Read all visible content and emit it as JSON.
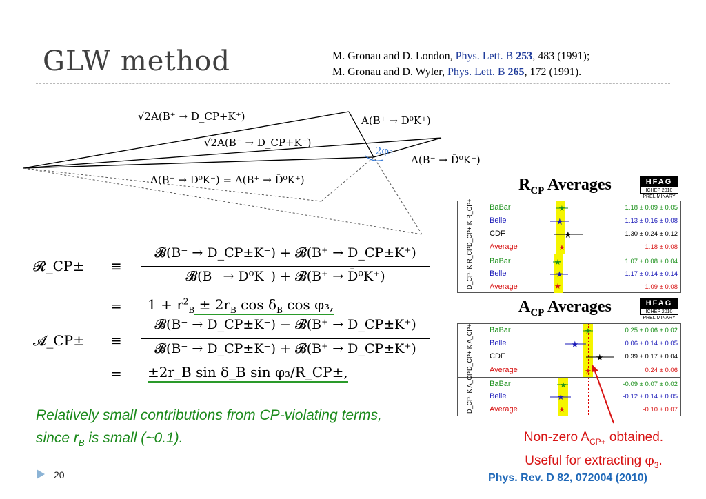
{
  "slide": {
    "title": "GLW method",
    "page_number": "20"
  },
  "references": {
    "line1": {
      "authors": "M. Gronau and D. London, ",
      "journal": "Phys. Lett. B ",
      "volume": "253",
      "rest": ", 483 (1991);"
    },
    "line2": {
      "authors": "M. Gronau and D. Wyler, ",
      "journal": "Phys. Lett. B ",
      "volume": "265",
      "rest": ", 172 (1991)."
    }
  },
  "diagram_labels": {
    "sqrt2_bplus": "√2A(B⁺ → D_CP+K⁺)",
    "sqrt2_bminus": "√2A(B⁻ → D_CP+K⁻)",
    "a_bplus_d0": "A(B⁺ → D⁰K⁺)",
    "a_bminus_d0bar": "A(B⁻ → D̄⁰K⁻)",
    "two_phi3": "2φ₃",
    "bottom_equality": "A(B⁻ → D⁰K⁻) = A(B⁺ → D̄⁰K⁺)"
  },
  "equations": {
    "rcp_lhs": "𝓡_CP±",
    "equiv": "≡",
    "eq": "=",
    "rcp_num": "𝓑(B⁻ → D_CP±K⁻) + 𝓑(B⁺ → D_CP±K⁺)",
    "rcp_den": "𝓑(B⁻ → D⁰K⁻) + 𝓑(B⁺ → D̄⁰K⁺)",
    "rcp_result_pre": "1 + r",
    "rcp_result_post": " ± 2r",
    "rcp_result_tail": " cos δ",
    "rcp_result_end": " cos φ₃,",
    "acp_lhs": "𝓐_CP±",
    "acp_num": "𝓑(B⁻ → D_CP±K⁻) − 𝓑(B⁺ → D_CP±K⁺)",
    "acp_den": "𝓑(B⁻ → D_CP±K⁻) + 𝓑(B⁺ → D_CP±K⁺)",
    "acp_result": "±2r_B sin δ_B sin φ₃/R_CP±,"
  },
  "note": {
    "line1": "Relatively small contributions from CP-violating terms,",
    "line2_pre": "since r",
    "line2_sub": "B",
    "line2_post": " is small (~0.1)."
  },
  "hfag_badge": {
    "name": "HFAG",
    "conf": "ICHEP 2010",
    "status": "PRELIMINARY"
  },
  "rcp_panel": {
    "title_main": "R",
    "title_sub": "CP",
    "title_rest": " Averages",
    "ylabel_top": "D_CP+ K R_CP+",
    "ylabel_bottom": "D_CP- K R_CP-",
    "rows_top": [
      {
        "name": "BaBar",
        "value": "1.18 ± 0.09 ± 0.05",
        "color": "#1a8f1a"
      },
      {
        "name": "Belle",
        "value": "1.13 ± 0.16 ± 0.08",
        "color": "#1a1ab8"
      },
      {
        "name": "CDF",
        "value": "1.30 ± 0.24 ± 0.12",
        "color": "#000000"
      },
      {
        "name": "Average",
        "value": "1.18 ± 0.08",
        "color": "#d81414"
      }
    ],
    "rows_bottom": [
      {
        "name": "BaBar",
        "value": "1.07 ± 0.08 ± 0.04",
        "color": "#1a8f1a"
      },
      {
        "name": "Belle",
        "value": "1.17 ± 0.14 ± 0.14",
        "color": "#1a1ab8"
      },
      {
        "name": "Average",
        "value": "1.09 ± 0.08",
        "color": "#d81414"
      }
    ]
  },
  "acp_panel": {
    "title_main": "A",
    "title_sub": "CP",
    "title_rest": " Averages",
    "ylabel_top": "D_CP+ K A_CP+",
    "ylabel_bottom": "D_CP- K A_CP-",
    "rows_top": [
      {
        "name": "BaBar",
        "value": "0.25 ± 0.06 ± 0.02",
        "color": "#1a8f1a"
      },
      {
        "name": "Belle",
        "value": "0.06 ± 0.14 ± 0.05",
        "color": "#1a1ab8"
      },
      {
        "name": "CDF",
        "value": "0.39 ± 0.17 ± 0.04",
        "color": "#000000"
      },
      {
        "name": "Average",
        "value": "0.24 ± 0.06",
        "color": "#d81414"
      }
    ],
    "rows_bottom": [
      {
        "name": "BaBar",
        "value": "-0.09 ± 0.07 ± 0.02",
        "color": "#1a8f1a"
      },
      {
        "name": "Belle",
        "value": "-0.12 ± 0.14 ± 0.05",
        "color": "#1a1ab8"
      },
      {
        "name": "Average",
        "value": "-0.10 ± 0.07",
        "color": "#d81414"
      }
    ]
  },
  "red_note": {
    "line1_pre": "Non-zero A",
    "line1_sub": "CP+",
    "line1_post": " obtained.",
    "line2_pre": "Useful for extracting ",
    "line2_phi": "φ",
    "line2_sub": "3",
    "line2_post": "."
  },
  "citation": "Phys. Rev. D 82, 072004 (2010)",
  "colors": {
    "accent_green": "#1b8a1b",
    "accent_red": "#d81414",
    "accent_blue": "#1f68b8",
    "band_yellow": "#f5f500"
  }
}
